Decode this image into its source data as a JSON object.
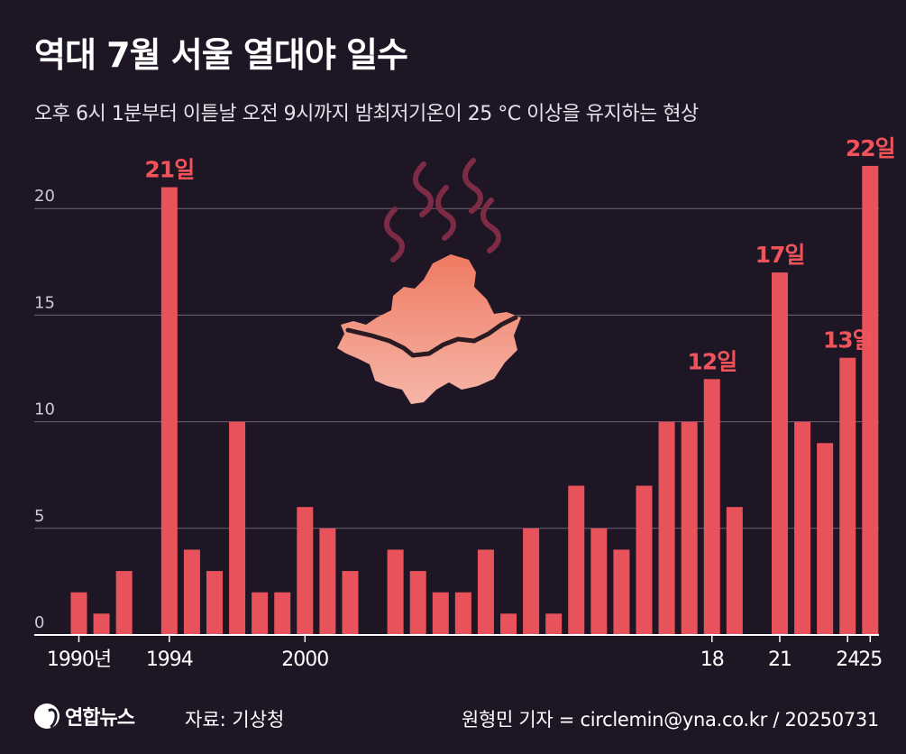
{
  "title": "역대 7월 서울 열대야 일수",
  "subtitle": "오후 6시 1분부터 이튿날 오전 9시까지 밤최저기온이 25 °C 이상을 유지하는 현상",
  "footer": {
    "logo_text": "연합뉴스",
    "source": "자료: 기상청",
    "credit": "원형민 기자 = circlemin@yna.co.kr / 20250731"
  },
  "colors": {
    "background": "#1f1625",
    "bar": "#e8525a",
    "label": "#f0535a",
    "grid": "#6f6577",
    "axis": "#ffffff",
    "map_top": "#ef7a62",
    "map_bottom": "#f6b6a8",
    "steam": "#7e2c45"
  },
  "icons": [
    "seoul-map-icon",
    "steam-icon"
  ],
  "chart_data": {
    "type": "bar",
    "x": [
      1990,
      1991,
      1992,
      1993,
      1994,
      1995,
      1996,
      1997,
      1998,
      1999,
      2000,
      2001,
      2002,
      2003,
      2004,
      2005,
      2006,
      2007,
      2008,
      2009,
      2010,
      2011,
      2012,
      2013,
      2014,
      2015,
      2016,
      2017,
      2018,
      2019,
      2020,
      2021,
      2022,
      2023,
      2024,
      2025
    ],
    "values": [
      2,
      1,
      3,
      0,
      21,
      4,
      3,
      10,
      2,
      2,
      6,
      5,
      3,
      0,
      4,
      3,
      2,
      2,
      4,
      1,
      5,
      1,
      7,
      5,
      4,
      7,
      10,
      10,
      12,
      6,
      0,
      17,
      10,
      9,
      13,
      22
    ],
    "ylim": [
      0,
      22
    ],
    "yticks": [
      0,
      5,
      10,
      15,
      20
    ],
    "xtick_labels": [
      {
        "x": 1990,
        "label": "1990년"
      },
      {
        "x": 1994,
        "label": "1994"
      },
      {
        "x": 2000,
        "label": "2000"
      },
      {
        "x": 2018,
        "label": "18"
      },
      {
        "x": 2021,
        "label": "21"
      },
      {
        "x": 2024,
        "label": "24"
      },
      {
        "x": 2025,
        "label": "25"
      }
    ],
    "annotations": [
      {
        "x": 1994,
        "text": "21일"
      },
      {
        "x": 2018,
        "text": "12일"
      },
      {
        "x": 2021,
        "text": "17일"
      },
      {
        "x": 2024,
        "text": "13일"
      },
      {
        "x": 2025,
        "text": "22일"
      }
    ],
    "grid": true
  }
}
